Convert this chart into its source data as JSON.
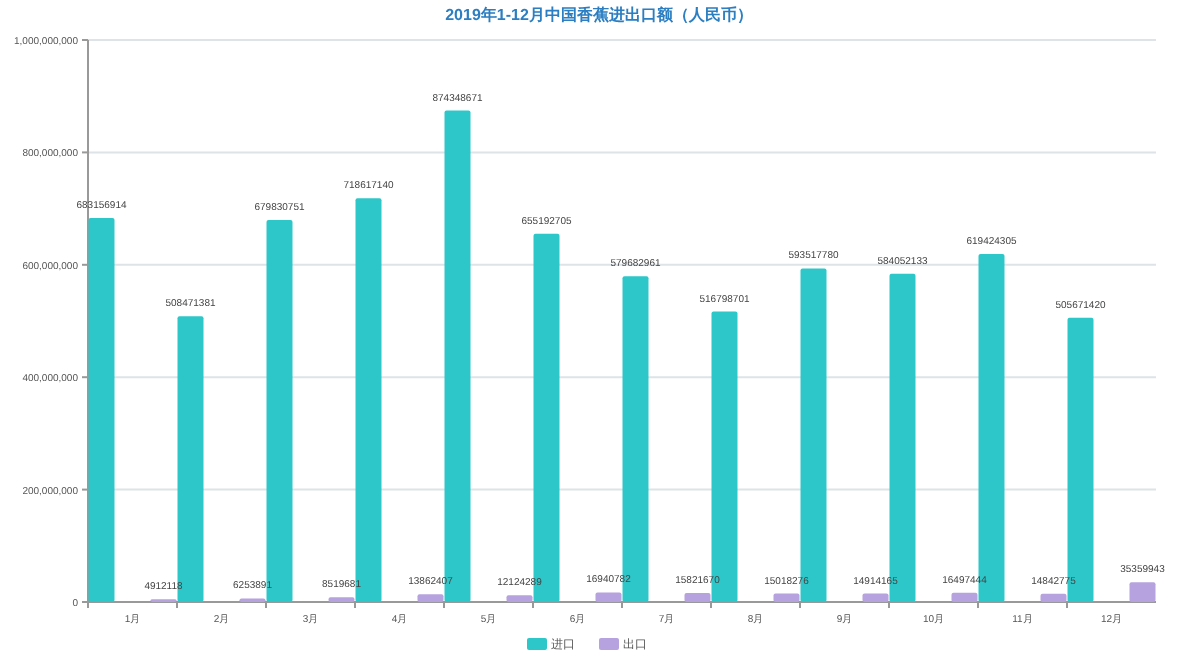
{
  "chart_data": {
    "type": "bar",
    "title": "2019年1-12月中国香蕉进出口额（人民币）",
    "categories": [
      "1月",
      "2月",
      "3月",
      "4月",
      "5月",
      "6月",
      "7月",
      "8月",
      "9月",
      "10月",
      "11月",
      "12月"
    ],
    "series": [
      {
        "name": "进口",
        "color": "#2ec7c9",
        "values": [
          683156914,
          508471381,
          679830751,
          718617140,
          874348671,
          655192705,
          579682961,
          516798701,
          593517780,
          584052133,
          619424305,
          505671420
        ]
      },
      {
        "name": "出口",
        "color": "#b6a2de",
        "values": [
          4912118,
          6253891,
          8519681,
          13862407,
          12124289,
          16940782,
          15821670,
          15018276,
          14914165,
          16497444,
          14842775,
          35359943
        ]
      }
    ],
    "ylim": [
      0,
      1000000000
    ],
    "yticks": [
      {
        "value": 0,
        "label": "0"
      },
      {
        "value": 200000000,
        "label": "200,000,000"
      },
      {
        "value": 400000000,
        "label": "400,000,000"
      },
      {
        "value": 600000000,
        "label": "600,000,000"
      },
      {
        "value": 800000000,
        "label": "800,000,000"
      },
      {
        "value": 1000000000,
        "label": "1,000,000,000"
      }
    ],
    "grid": "y",
    "legend": "bottom",
    "data_labels": true
  }
}
